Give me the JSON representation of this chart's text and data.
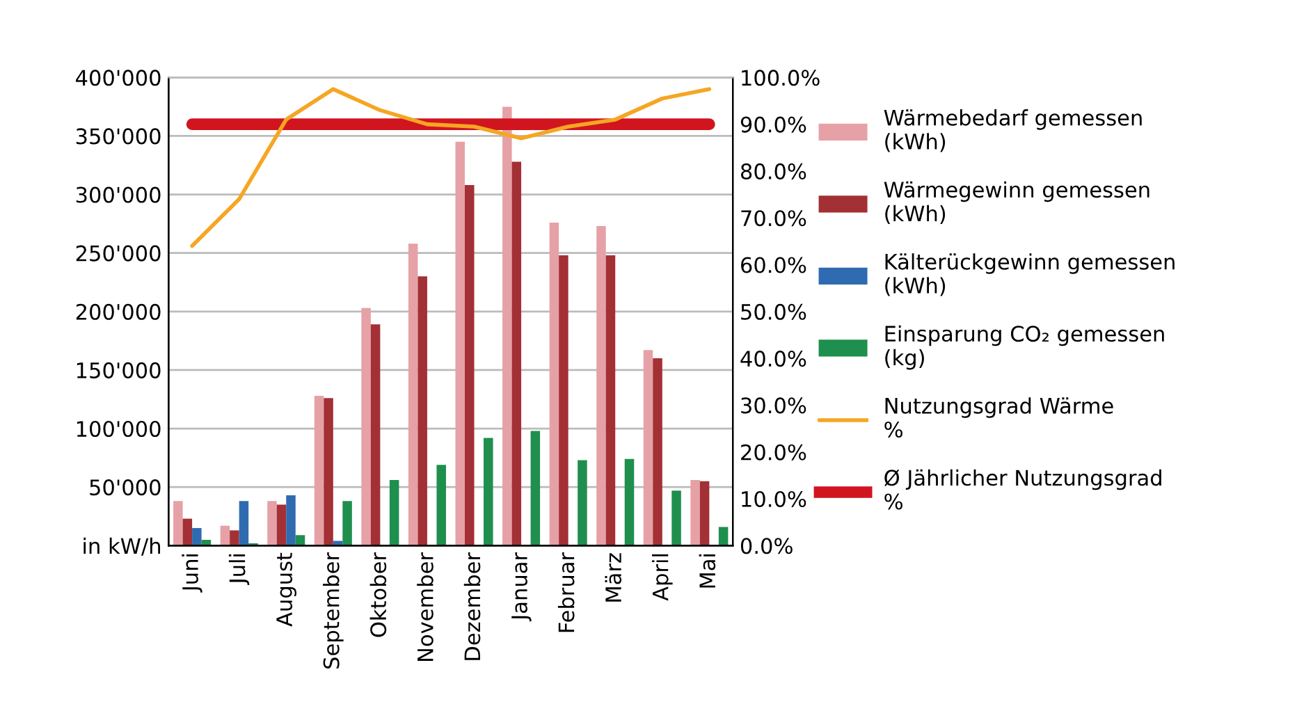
{
  "chart_data": {
    "type": "bar",
    "categories": [
      "Juni",
      "Juli",
      "August",
      "September",
      "Oktober",
      "November",
      "Dezember",
      "Januar",
      "Februar",
      "März",
      "April",
      "Mai"
    ],
    "series": [
      {
        "name": "Wärmebedarf gemessen\n(kWh)",
        "color": "#e6a1a6",
        "values": [
          38000,
          17000,
          38000,
          128000,
          203000,
          258000,
          345000,
          375000,
          276000,
          273000,
          167000,
          56000
        ]
      },
      {
        "name": "Wärmegewinn gemessen\n(kWh)",
        "color": "#a33035",
        "values": [
          23000,
          13000,
          35000,
          126000,
          189000,
          230000,
          308000,
          328000,
          248000,
          248000,
          160000,
          55000
        ]
      },
      {
        "name": "Kälterückgewinn gemessen\n(kWh)",
        "color": "#2f6bb0",
        "values": [
          15000,
          38000,
          43000,
          4000,
          0,
          0,
          0,
          0,
          0,
          0,
          0,
          0
        ]
      },
      {
        "name": "Einsparung CO₂ gemessen\n(kg)",
        "color": "#1f8f4e",
        "values": [
          5000,
          2000,
          9000,
          38000,
          56000,
          69000,
          92000,
          98000,
          73000,
          74000,
          47000,
          16000
        ]
      },
      {
        "name": "Nutzungsgrad Wärme\n%",
        "type": "line",
        "axis": "y2",
        "color": "#f5a623",
        "values": [
          64,
          74,
          91,
          97.5,
          93,
          90,
          89.5,
          87,
          89.5,
          91,
          95.5,
          97.5
        ]
      },
      {
        "name": "Ø Jährlicher Nutzungsgrad\n%",
        "type": "line",
        "axis": "y2",
        "color": "#d0151f",
        "values": [
          90,
          90,
          90,
          90,
          90,
          90,
          90,
          90,
          90,
          90,
          90,
          90
        ]
      }
    ],
    "ylim": [
      0,
      400000
    ],
    "yticks": [
      {
        "value": 0,
        "label": "in kW/h"
      },
      {
        "value": 50000,
        "label": "50'000"
      },
      {
        "value": 100000,
        "label": "100'000"
      },
      {
        "value": 150000,
        "label": "150'000"
      },
      {
        "value": 200000,
        "label": "200'000"
      },
      {
        "value": 250000,
        "label": "250'000"
      },
      {
        "value": 300000,
        "label": "300'000"
      },
      {
        "value": 350000,
        "label": "350'000"
      },
      {
        "value": 400000,
        "label": "400'000"
      }
    ],
    "y2lim": [
      0,
      100
    ],
    "y2ticks": [
      {
        "value": 0,
        "label": "0.0%"
      },
      {
        "value": 10,
        "label": "10.0%"
      },
      {
        "value": 20,
        "label": "20.0%"
      },
      {
        "value": 30,
        "label": "30.0%"
      },
      {
        "value": 40,
        "label": "40.0%"
      },
      {
        "value": 50,
        "label": "50.0%"
      },
      {
        "value": 60,
        "label": "60.0%"
      },
      {
        "value": 70,
        "label": "70.0%"
      },
      {
        "value": 80,
        "label": "80.0%"
      },
      {
        "value": 90,
        "label": "90.0%"
      },
      {
        "value": 100,
        "label": "100.0%"
      }
    ],
    "grid": "y",
    "legend": "right"
  }
}
